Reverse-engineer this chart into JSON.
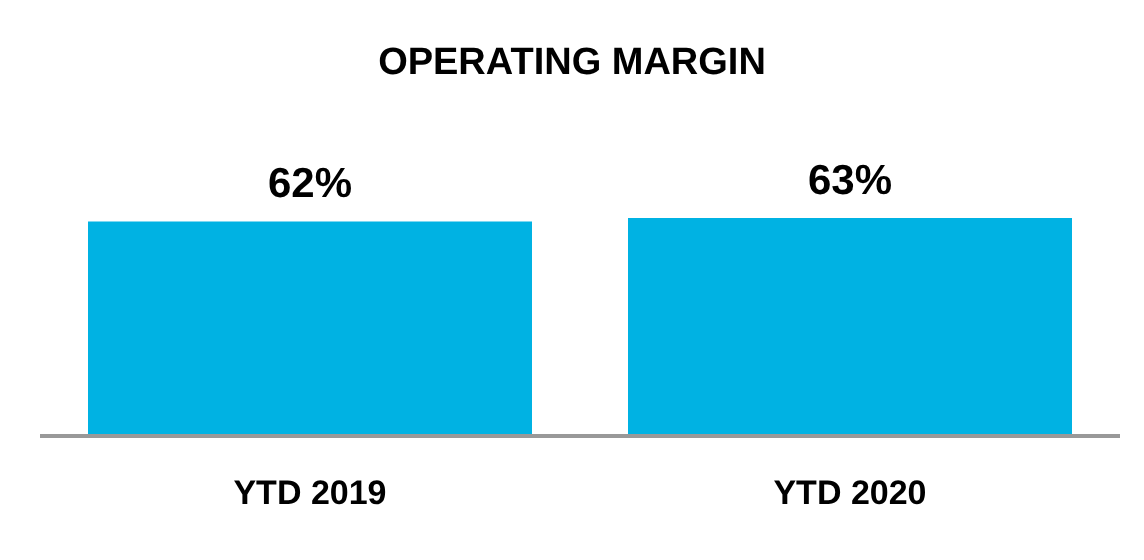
{
  "chart_data": {
    "type": "bar",
    "title": "OPERATING MARGIN",
    "categories": [
      "YTD 2019",
      "YTD 2020"
    ],
    "values": [
      62,
      63
    ],
    "value_labels": [
      "62%",
      "63%"
    ],
    "color": "#00b2e3"
  }
}
